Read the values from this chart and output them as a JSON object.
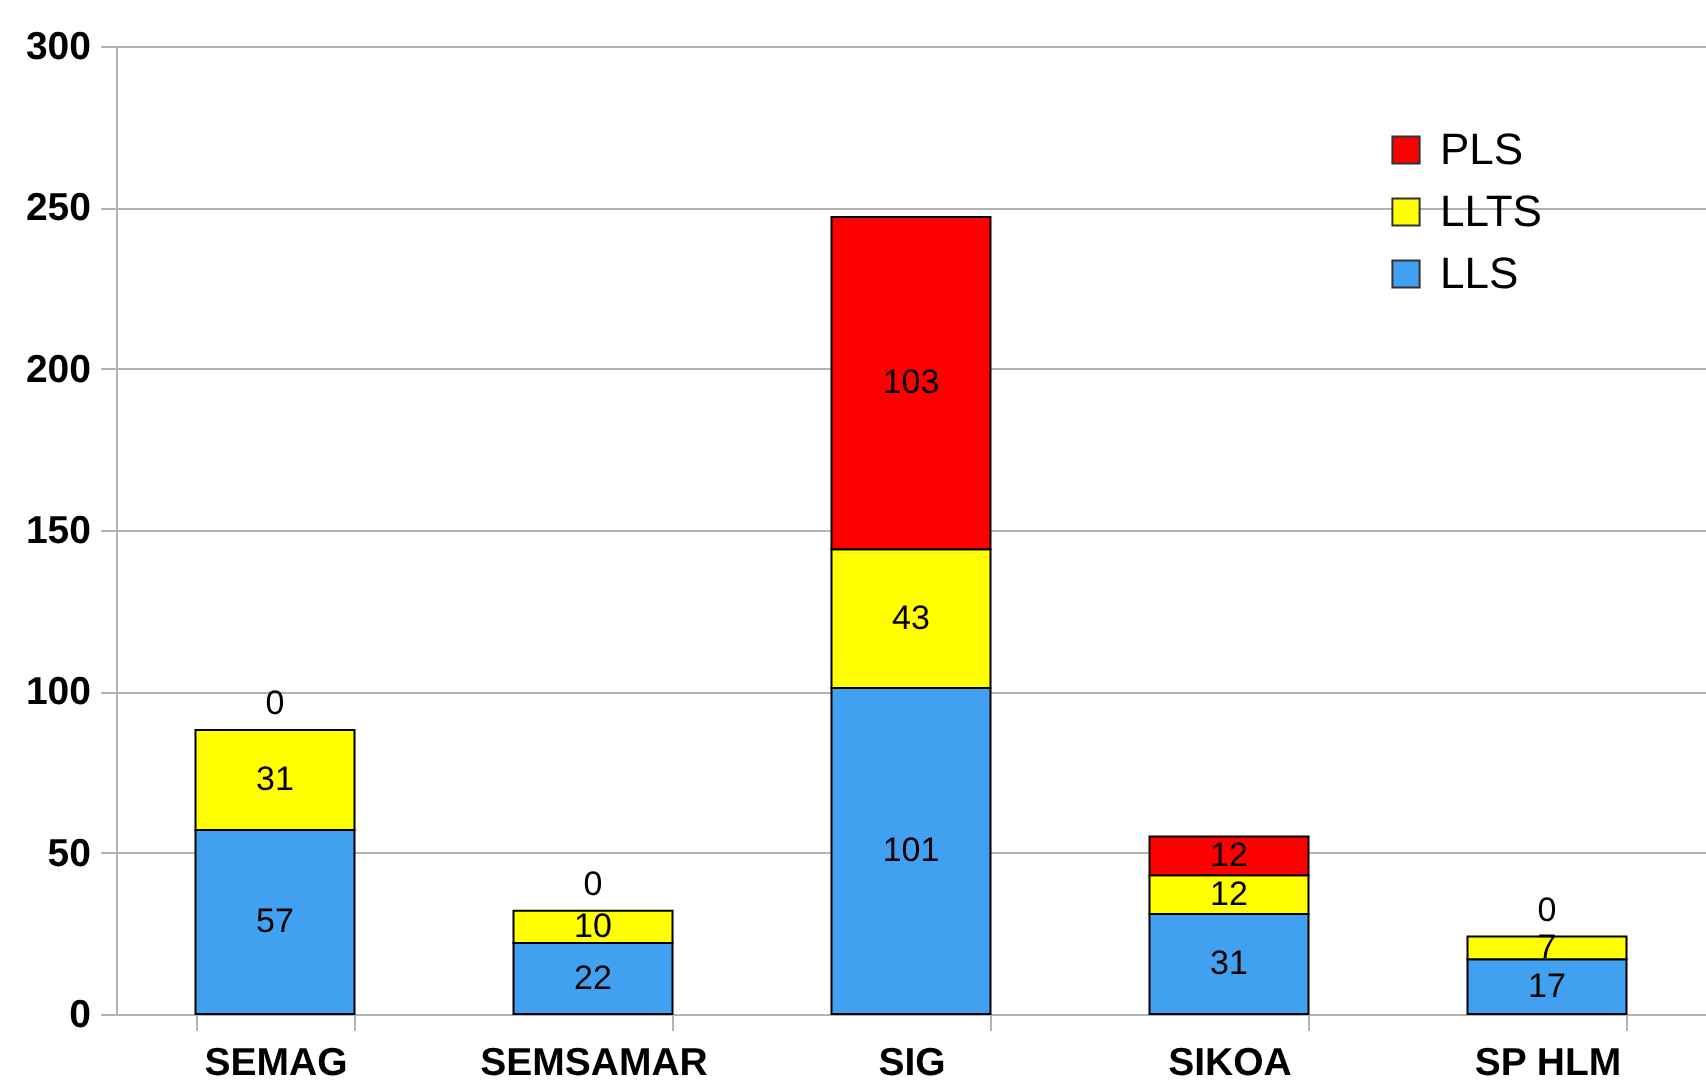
{
  "chart_data": {
    "type": "bar",
    "categories": [
      "SEMAG",
      "SEMSAMAR",
      "SIG",
      "SIKOA",
      "SP HLM"
    ],
    "stacked": true,
    "series": [
      {
        "name": "LLS",
        "color": "#42a0f0",
        "values": [
          57,
          22,
          101,
          31,
          17
        ]
      },
      {
        "name": "LLTS",
        "color": "#ffff00",
        "values": [
          31,
          10,
          43,
          12,
          7
        ]
      },
      {
        "name": "PLS",
        "color": "#ff0000",
        "values": [
          0,
          0,
          103,
          12,
          0
        ]
      }
    ],
    "ylim": [
      0,
      300
    ],
    "yticks": [
      0,
      50,
      100,
      150,
      200,
      250,
      300
    ],
    "grid": "y",
    "legend": "top right",
    "data_labels": true
  }
}
